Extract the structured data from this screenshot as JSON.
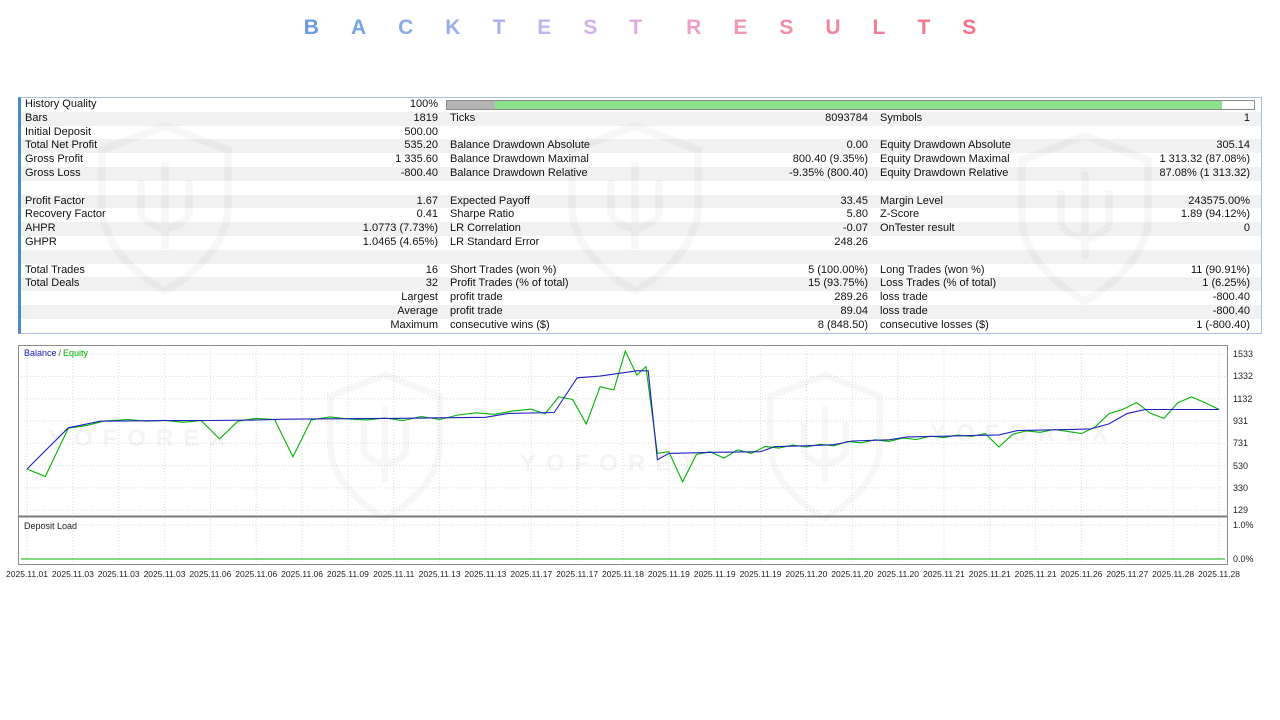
{
  "title": {
    "text": "BACKTEST RESULTS",
    "letter_colors": [
      "#6B9CE0",
      "#7AA3E3",
      "#8BA9E6",
      "#9CAEE9",
      "#AEB1EB",
      "#C1B3EC",
      "#D3B1E9",
      "#E2ABDE",
      "#EBA0C9",
      "#F096B6",
      "#F28DA8",
      "#F3859D",
      "#F47E95",
      "#F5788E",
      "#F67288"
    ]
  },
  "watermark": {
    "text": "YOFOREX"
  },
  "stats_table": {
    "progress": {
      "gray": "#b4b4b4",
      "green": "#8ce28c"
    },
    "rows": [
      {
        "progress": true,
        "cells": [
          "History Quality",
          "100%"
        ]
      },
      {
        "cells": [
          "Bars",
          "1819",
          "Ticks",
          "8093784",
          "Symbols",
          "1"
        ]
      },
      {
        "cells": [
          "Initial Deposit",
          "500.00",
          "",
          "",
          "",
          ""
        ]
      },
      {
        "cells": [
          "Total Net Profit",
          "535.20",
          "Balance Drawdown Absolute",
          "0.00",
          "Equity Drawdown Absolute",
          "305.14"
        ]
      },
      {
        "cells": [
          "Gross Profit",
          "1 335.60",
          "Balance Drawdown Maximal",
          "800.40 (9.35%)",
          "Equity Drawdown Maximal",
          "1 313.32 (87.08%)"
        ]
      },
      {
        "cells": [
          "Gross Loss",
          "-800.40",
          "Balance Drawdown Relative",
          "-9.35% (800.40)",
          "Equity Drawdown Relative",
          "87.08% (1 313.32)"
        ]
      },
      {
        "blank": true
      },
      {
        "cells": [
          "Profit Factor",
          "1.67",
          "Expected Payoff",
          "33.45",
          "Margin Level",
          "243575.00%"
        ]
      },
      {
        "cells": [
          "Recovery Factor",
          "0.41",
          "Sharpe Ratio",
          "5.80",
          "Z-Score",
          "1.89 (94.12%)"
        ]
      },
      {
        "cells": [
          "AHPR",
          "1.0773 (7.73%)",
          "LR Correlation",
          "-0.07",
          "OnTester result",
          "0"
        ]
      },
      {
        "cells": [
          "GHPR",
          "1.0465 (4.65%)",
          "LR Standard Error",
          "248.26",
          "",
          ""
        ]
      },
      {
        "blank": true
      },
      {
        "cells": [
          "Total Trades",
          "16",
          "Short Trades (won %)",
          "5 (100.00%)",
          "Long Trades (won %)",
          "11 (90.91%)"
        ]
      },
      {
        "cells": [
          "Total Deals",
          "32",
          "Profit Trades (% of total)",
          "15 (93.75%)",
          "Loss Trades (% of total)",
          "1 (6.25%)"
        ]
      },
      {
        "cells": [
          "",
          "Largest",
          "profit trade",
          "289.26",
          "loss trade",
          "-800.40"
        ]
      },
      {
        "cells": [
          "",
          "Average",
          "profit trade",
          "89.04",
          "loss trade",
          "-800.40"
        ]
      },
      {
        "cells": [
          "",
          "Maximum",
          "consecutive wins ($)",
          "8 (848.50)",
          "consecutive losses ($)",
          "1 (-800.40)"
        ]
      }
    ]
  },
  "chart_data": {
    "type": "line",
    "legend": [
      {
        "label": "Balance",
        "color": "#2020c0"
      },
      {
        "label": "Equity",
        "color": "#00b400"
      }
    ],
    "y_ticks": [
      1533,
      1332,
      1132,
      931,
      731,
      530,
      330,
      129
    ],
    "y_range": [
      95,
      1570
    ],
    "x_labels": [
      "2025.11.01",
      "2025.11.03",
      "2025.11.03",
      "2025.11.03",
      "2025.11.06",
      "2025.11.06",
      "2025.11.06",
      "2025.11.09",
      "2025.11.11",
      "2025.11.13",
      "2025.11.13",
      "2025.11.17",
      "2025.11.17",
      "2025.11.18",
      "2025.11.19",
      "2025.11.19",
      "2025.11.19",
      "2025.11.20",
      "2025.11.20",
      "2025.11.20",
      "2025.11.21",
      "2025.11.21",
      "2025.11.21",
      "2025.11.26",
      "2025.11.27",
      "2025.11.28",
      "2025.11.28"
    ],
    "series": [
      {
        "name": "Balance",
        "color": "#2020c0",
        "points": [
          [
            0,
            500
          ],
          [
            0.9,
            870
          ],
          [
            1.6,
            930
          ],
          [
            3,
            935
          ],
          [
            4,
            936
          ],
          [
            5,
            940
          ],
          [
            5.6,
            948
          ],
          [
            7,
            952
          ],
          [
            8,
            955
          ],
          [
            9,
            960
          ],
          [
            10,
            965
          ],
          [
            10.5,
            1000
          ],
          [
            11.5,
            1008
          ],
          [
            12,
            1320
          ],
          [
            12.5,
            1335
          ],
          [
            13.3,
            1383
          ],
          [
            13.55,
            1383
          ],
          [
            13.75,
            583
          ],
          [
            14,
            640
          ],
          [
            15,
            650
          ],
          [
            16,
            655
          ],
          [
            16.3,
            700
          ],
          [
            17.2,
            712
          ],
          [
            17.6,
            718
          ],
          [
            18,
            752
          ],
          [
            18.8,
            762
          ],
          [
            19.2,
            788
          ],
          [
            20,
            795
          ],
          [
            20.8,
            803
          ],
          [
            21.2,
            806
          ],
          [
            21.6,
            845
          ],
          [
            22.8,
            856
          ],
          [
            23.2,
            860
          ],
          [
            23.6,
            905
          ],
          [
            24,
            1000
          ],
          [
            24.4,
            1035
          ],
          [
            26,
            1035
          ]
        ]
      },
      {
        "name": "Equity",
        "color": "#00b400",
        "points": [
          [
            0,
            500
          ],
          [
            0.4,
            432
          ],
          [
            0.9,
            868
          ],
          [
            1.3,
            890
          ],
          [
            1.7,
            932
          ],
          [
            2.2,
            945
          ],
          [
            2.6,
            930
          ],
          [
            3,
            938
          ],
          [
            3.4,
            920
          ],
          [
            3.8,
            935
          ],
          [
            4.2,
            770
          ],
          [
            4.6,
            930
          ],
          [
            5,
            955
          ],
          [
            5.4,
            945
          ],
          [
            5.8,
            610
          ],
          [
            6.2,
            940
          ],
          [
            6.6,
            968
          ],
          [
            7,
            950
          ],
          [
            7.4,
            940
          ],
          [
            7.8,
            958
          ],
          [
            8.2,
            935
          ],
          [
            8.6,
            972
          ],
          [
            9,
            945
          ],
          [
            9.4,
            985
          ],
          [
            9.8,
            1005
          ],
          [
            10.2,
            992
          ],
          [
            10.6,
            1022
          ],
          [
            11,
            1038
          ],
          [
            11.3,
            995
          ],
          [
            11.6,
            1150
          ],
          [
            11.9,
            1125
          ],
          [
            12.2,
            905
          ],
          [
            12.5,
            1240
          ],
          [
            12.8,
            1210
          ],
          [
            13.05,
            1560
          ],
          [
            13.3,
            1345
          ],
          [
            13.5,
            1420
          ],
          [
            13.75,
            640
          ],
          [
            14,
            655
          ],
          [
            14.3,
            385
          ],
          [
            14.6,
            630
          ],
          [
            14.9,
            655
          ],
          [
            15.2,
            598
          ],
          [
            15.5,
            672
          ],
          [
            15.8,
            640
          ],
          [
            16.1,
            702
          ],
          [
            16.4,
            688
          ],
          [
            16.7,
            715
          ],
          [
            17,
            698
          ],
          [
            17.3,
            722
          ],
          [
            17.6,
            708
          ],
          [
            17.9,
            748
          ],
          [
            18.2,
            735
          ],
          [
            18.5,
            762
          ],
          [
            18.8,
            748
          ],
          [
            19.1,
            778
          ],
          [
            19.4,
            765
          ],
          [
            19.7,
            795
          ],
          [
            20,
            782
          ],
          [
            20.3,
            805
          ],
          [
            20.6,
            792
          ],
          [
            20.9,
            818
          ],
          [
            21.2,
            698
          ],
          [
            21.5,
            812
          ],
          [
            21.8,
            842
          ],
          [
            22.1,
            830
          ],
          [
            22.4,
            855
          ],
          [
            22.7,
            838
          ],
          [
            23,
            818
          ],
          [
            23.3,
            878
          ],
          [
            23.6,
            998
          ],
          [
            23.9,
            1035
          ],
          [
            24.2,
            1098
          ],
          [
            24.5,
            1002
          ],
          [
            24.8,
            955
          ],
          [
            25.1,
            1095
          ],
          [
            25.4,
            1148
          ],
          [
            25.7,
            1095
          ],
          [
            26,
            1035
          ]
        ]
      }
    ],
    "deposit_load": {
      "label": "Deposit Load",
      "color": "#00b400",
      "y_ticks": [
        "1.0%",
        "0.0%"
      ]
    }
  }
}
